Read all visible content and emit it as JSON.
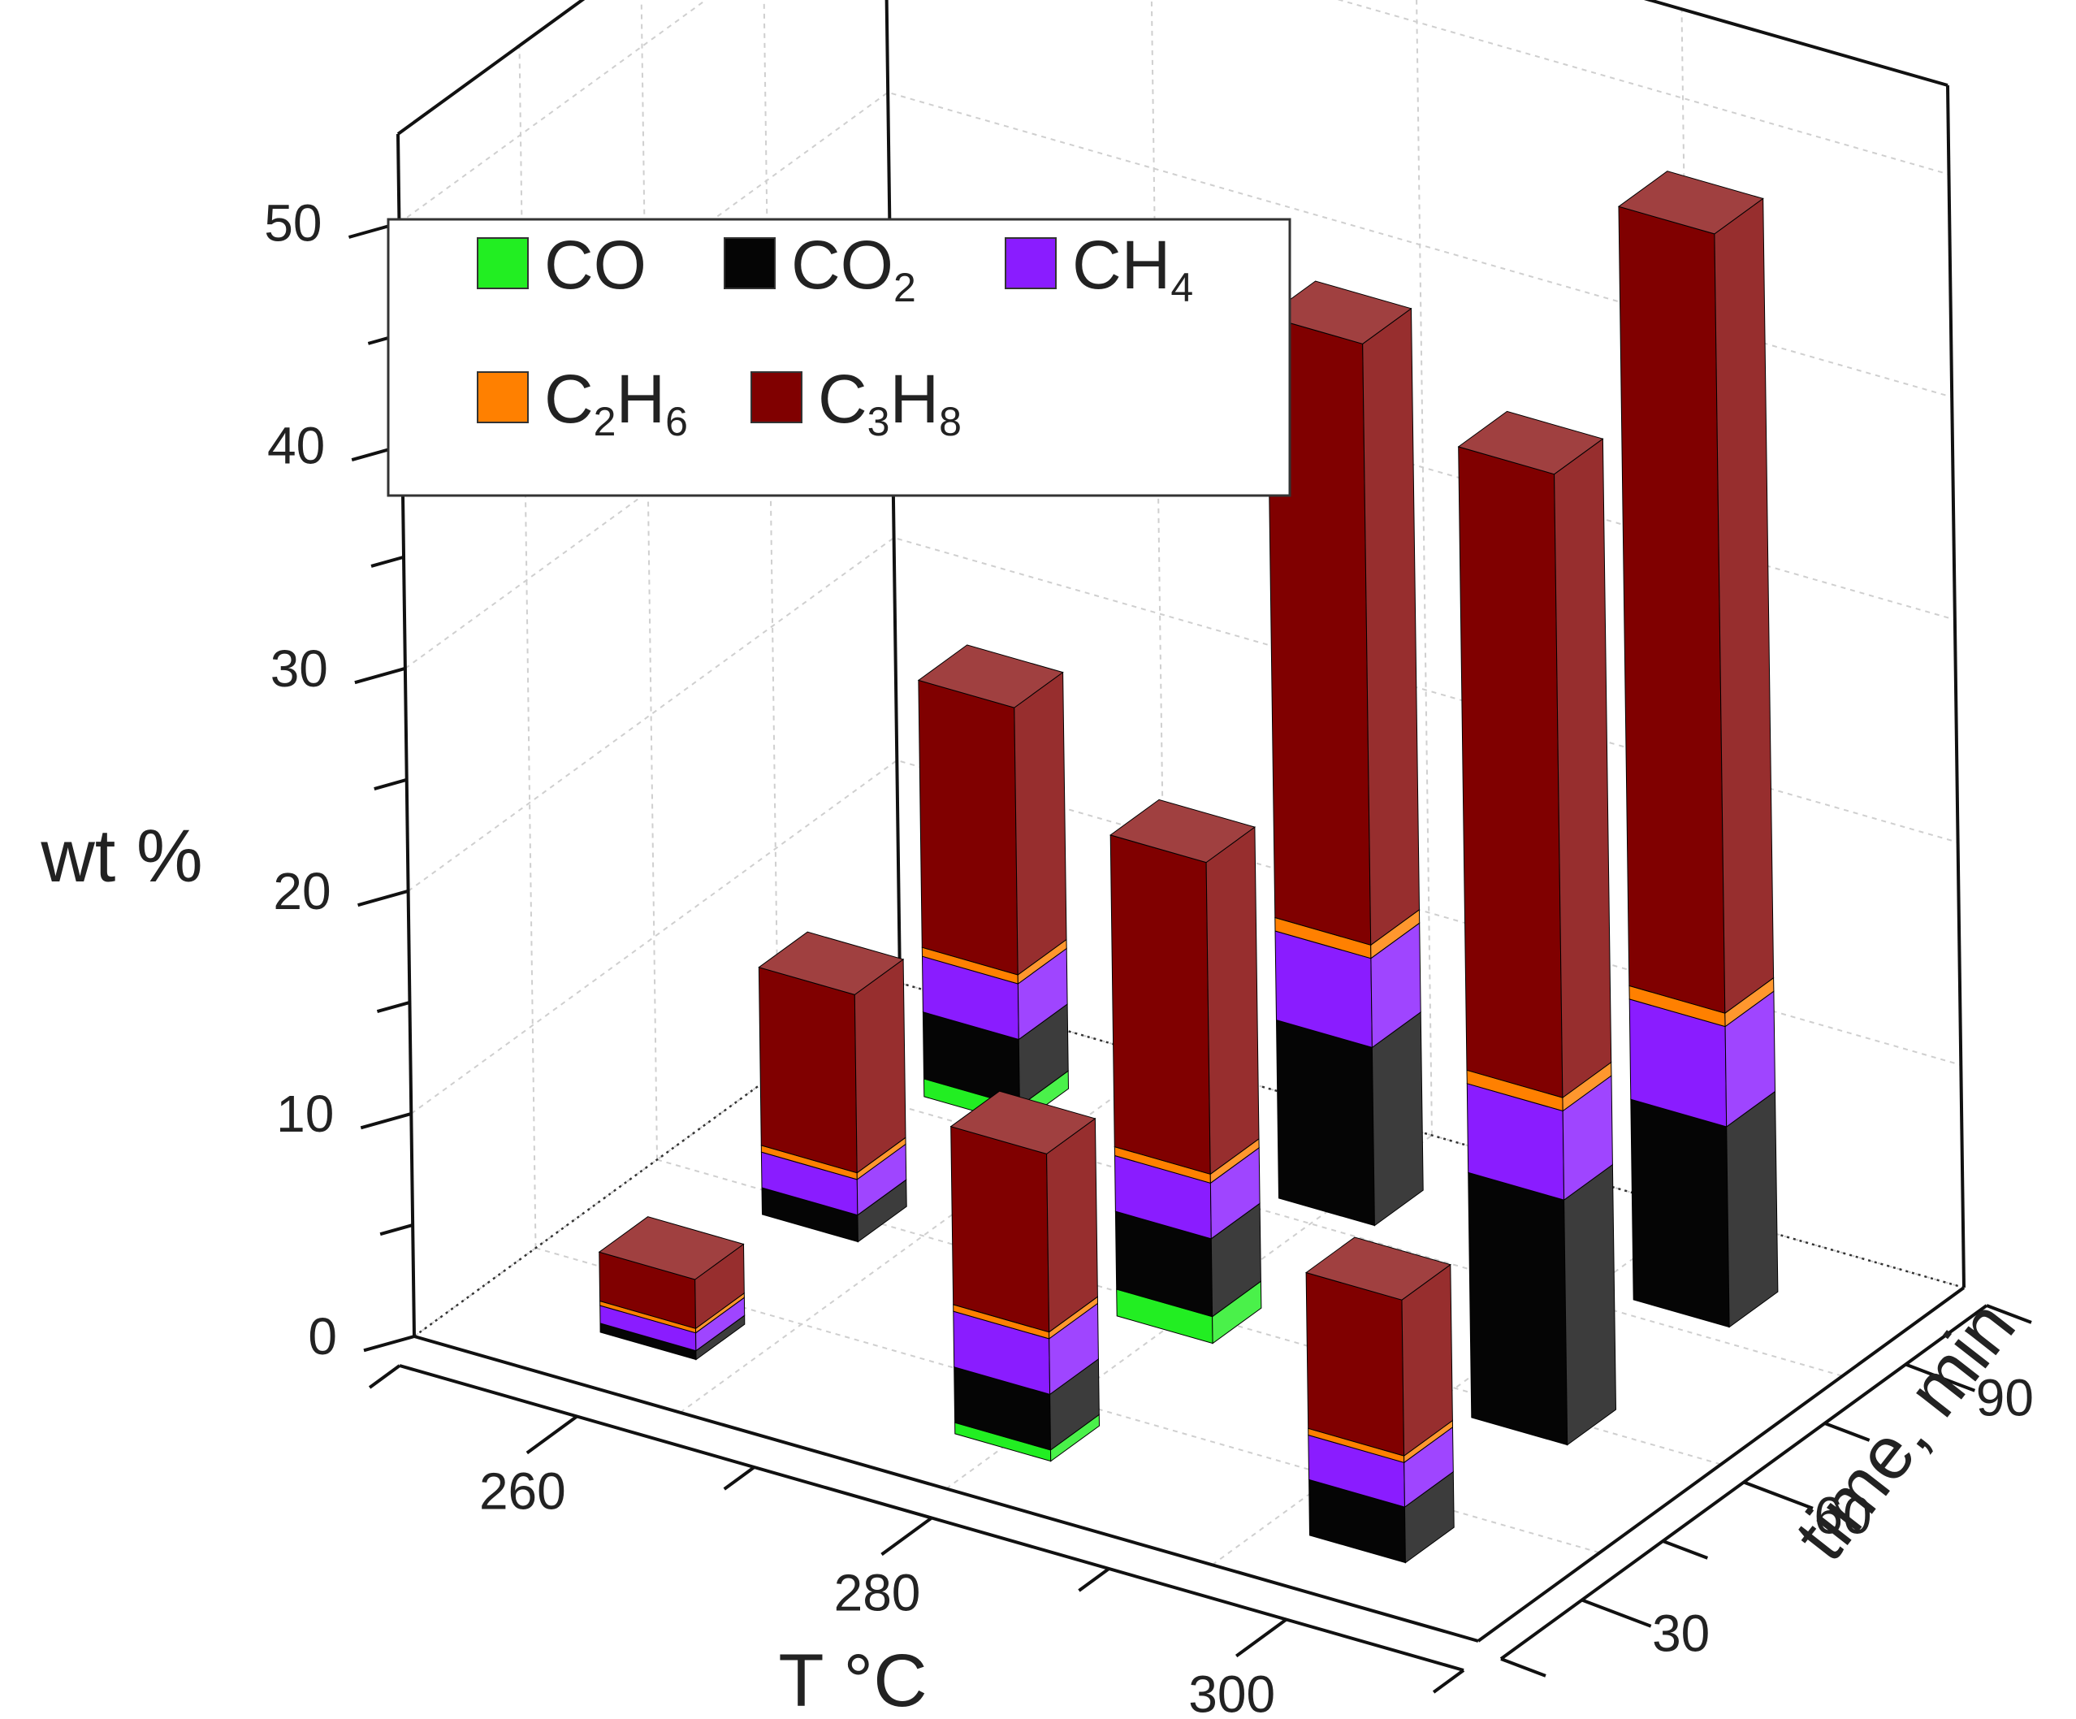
{
  "chart_data": {
    "type": "bar3d-stacked",
    "title": "",
    "xlabel": "T °C",
    "ylabel": "time, min",
    "zlabel": "wt %",
    "x_ticks": [
      "260",
      "280",
      "300"
    ],
    "y_ticks": [
      "30",
      "60",
      "90"
    ],
    "z_ticks": [
      "0",
      "10",
      "20",
      "30",
      "40",
      "50"
    ],
    "zlim": [
      0,
      55
    ],
    "legend": {
      "placement": "top-left",
      "entries": [
        {
          "key": "CO",
          "base": "CO",
          "sub": "",
          "color": "#22ee22"
        },
        {
          "key": "CO2",
          "base": "CO",
          "sub": "2",
          "color": "#050505"
        },
        {
          "key": "CH4",
          "base": "CH",
          "sub": "4",
          "color": "#8a1cff"
        },
        {
          "key": "C2H6",
          "base": "C2H6",
          "sub": "",
          "color": "#ff8000",
          "parts": [
            [
              "C",
              ""
            ],
            [
              "2",
              "sub"
            ],
            [
              "H",
              ""
            ],
            [
              "6",
              "sub"
            ]
          ]
        },
        {
          "key": "C3H8",
          "base": "C3H8",
          "sub": "",
          "color": "#800000",
          "parts": [
            [
              "C",
              ""
            ],
            [
              "3",
              "sub"
            ],
            [
              "H",
              ""
            ],
            [
              "8",
              "sub"
            ]
          ]
        }
      ]
    },
    "series": [
      {
        "name": "CO",
        "key": "CO",
        "color": "#22ee22"
      },
      {
        "name": "CO2",
        "key": "CO2",
        "color": "#050505"
      },
      {
        "name": "CH4",
        "key": "CH4",
        "color": "#8a1cff"
      },
      {
        "name": "C2H6",
        "key": "C2H6",
        "color": "#ff8000"
      },
      {
        "name": "C3H8",
        "key": "C3H8",
        "color": "#800000"
      }
    ],
    "bars": [
      {
        "T": "260",
        "time": "30",
        "CO": 0.0,
        "CO2": 0.4,
        "CH4": 0.8,
        "C2H6": 0.2,
        "C3H8": 2.2
      },
      {
        "T": "260",
        "time": "60",
        "CO": 0.0,
        "CO2": 1.2,
        "CH4": 1.6,
        "C2H6": 0.3,
        "C3H8": 8.0
      },
      {
        "T": "260",
        "time": "90",
        "CO": 0.8,
        "CO2": 3.0,
        "CH4": 2.5,
        "C2H6": 0.4,
        "C3H8": 12.0
      },
      {
        "T": "280",
        "time": "30",
        "CO": 0.5,
        "CO2": 2.5,
        "CH4": 2.5,
        "C2H6": 0.3,
        "C3H8": 8.0
      },
      {
        "T": "280",
        "time": "60",
        "CO": 1.2,
        "CO2": 3.5,
        "CH4": 2.5,
        "C2H6": 0.4,
        "C3H8": 14.0
      },
      {
        "T": "280",
        "time": "90",
        "CO": 0.0,
        "CO2": 8.0,
        "CH4": 4.0,
        "C2H6": 0.6,
        "C3H8": 27.0
      },
      {
        "T": "300",
        "time": "30",
        "CO": 0.0,
        "CO2": 2.5,
        "CH4": 2.0,
        "C2H6": 0.3,
        "C3H8": 7.0
      },
      {
        "T": "300",
        "time": "60",
        "CO": 0.0,
        "CO2": 11.0,
        "CH4": 4.0,
        "C2H6": 0.6,
        "C3H8": 28.0
      },
      {
        "T": "300",
        "time": "90",
        "CO": 0.0,
        "CO2": 9.0,
        "CH4": 4.5,
        "C2H6": 0.6,
        "C3H8": 35.0
      }
    ]
  }
}
